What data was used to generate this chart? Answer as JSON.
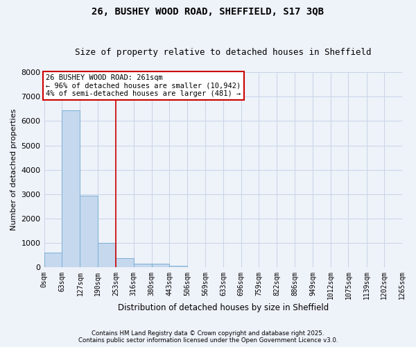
{
  "title1": "26, BUSHEY WOOD ROAD, SHEFFIELD, S17 3QB",
  "title2": "Size of property relative to detached houses in Sheffield",
  "xlabel": "Distribution of detached houses by size in Sheffield",
  "ylabel": "Number of detached properties",
  "bar_values": [
    600,
    6450,
    2950,
    1000,
    370,
    160,
    150,
    80,
    20,
    5,
    2,
    1,
    0,
    0,
    0,
    0,
    0,
    0,
    0,
    0
  ],
  "bin_edges": [
    0,
    63,
    127,
    190,
    253,
    316,
    380,
    443,
    506,
    569,
    633,
    696,
    759,
    822,
    886,
    949,
    1012,
    1075,
    1139,
    1202,
    1265
  ],
  "bin_labels": [
    "0sqm",
    "63sqm",
    "127sqm",
    "190sqm",
    "253sqm",
    "316sqm",
    "380sqm",
    "443sqm",
    "506sqm",
    "569sqm",
    "633sqm",
    "696sqm",
    "759sqm",
    "822sqm",
    "886sqm",
    "949sqm",
    "1012sqm",
    "1075sqm",
    "1139sqm",
    "1202sqm",
    "1265sqm"
  ],
  "vline_x": 253,
  "vline_color": "#cc0000",
  "bar_facecolor": "#c5d8ee",
  "bar_edgecolor": "#7aafd4",
  "ylim": [
    0,
    8000
  ],
  "yticks": [
    0,
    1000,
    2000,
    3000,
    4000,
    5000,
    6000,
    7000,
    8000
  ],
  "annotation_line1": "26 BUSHEY WOOD ROAD: 261sqm",
  "annotation_line2": "← 96% of detached houses are smaller (10,942)",
  "annotation_line3": "4% of semi-detached houses are larger (481) →",
  "footer1": "Contains HM Land Registry data © Crown copyright and database right 2025.",
  "footer2": "Contains public sector information licensed under the Open Government Licence v3.0.",
  "bg_color": "#eef2f9",
  "grid_color": "#c8d4e8",
  "title_fontsize": 10,
  "subtitle_fontsize": 9
}
